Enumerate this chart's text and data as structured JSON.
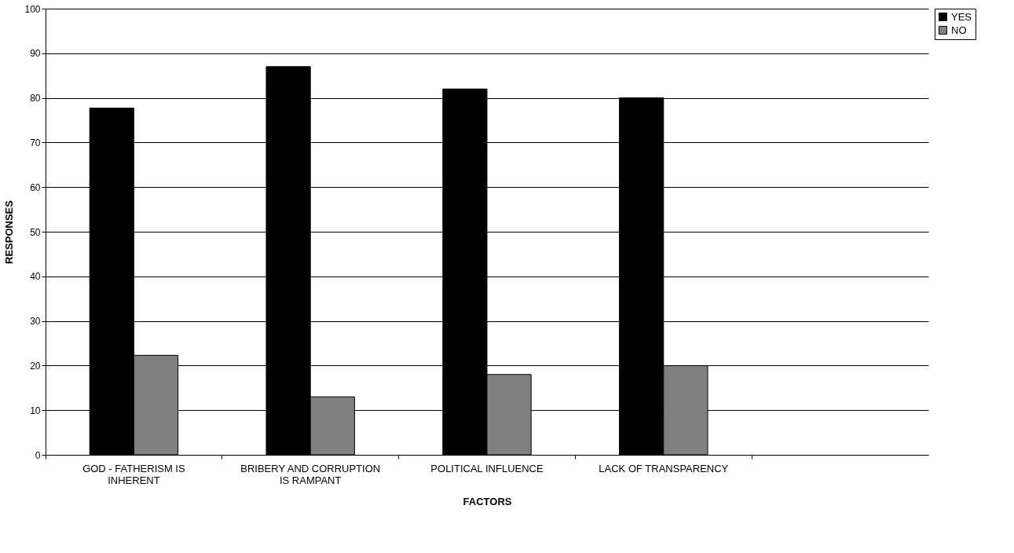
{
  "chart_data": {
    "type": "bar",
    "xlabel": "FACTORS",
    "ylabel": "RESPONSES",
    "categories": [
      "GOD - FATHERISM IS INHERENT",
      "BRIBERY AND CORRUPTION IS RAMPANT",
      "POLITICAL INFLUENCE",
      "LACK OF TRANSPARENCY",
      null
    ],
    "series": [
      {
        "name": "YES",
        "color": "#000000",
        "values": [
          77.7,
          87,
          82,
          80,
          null
        ]
      },
      {
        "name": "NO",
        "color": "#808080",
        "values": [
          22.3,
          13,
          18,
          20,
          null
        ]
      }
    ],
    "ylim": [
      0,
      100
    ],
    "yticks": [
      0,
      10,
      20,
      30,
      40,
      50,
      60,
      70,
      80,
      90,
      100
    ],
    "grid": "y",
    "legend": "right"
  }
}
